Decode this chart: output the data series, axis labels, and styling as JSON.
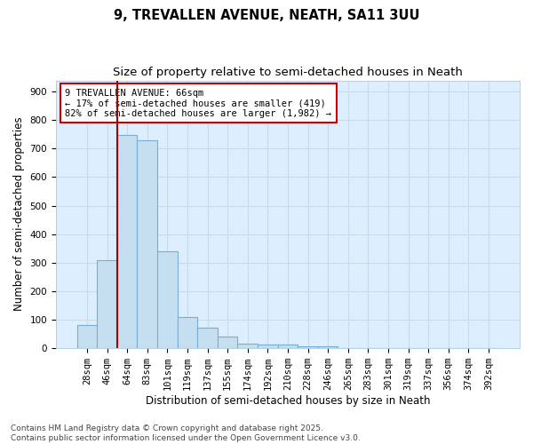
{
  "title_line1": "9, TREVALLEN AVENUE, NEATH, SA11 3UU",
  "title_line2": "Size of property relative to semi-detached houses in Neath",
  "xlabel": "Distribution of semi-detached houses by size in Neath",
  "ylabel": "Number of semi-detached properties",
  "bar_labels": [
    "28sqm",
    "46sqm",
    "64sqm",
    "83sqm",
    "101sqm",
    "119sqm",
    "137sqm",
    "155sqm",
    "174sqm",
    "192sqm",
    "210sqm",
    "228sqm",
    "246sqm",
    "265sqm",
    "283sqm",
    "301sqm",
    "319sqm",
    "337sqm",
    "356sqm",
    "374sqm",
    "392sqm"
  ],
  "bar_values": [
    80,
    307,
    748,
    730,
    340,
    108,
    70,
    40,
    15,
    12,
    12,
    5,
    4,
    0,
    0,
    0,
    0,
    0,
    0,
    0,
    0
  ],
  "bar_color": "#c5dff0",
  "bar_edge_color": "#7badd4",
  "plot_bg_color": "#ddeeff",
  "fig_bg_color": "#ffffff",
  "vline_color": "#aa0000",
  "vline_x_index": 2,
  "annotation_text": "9 TREVALLEN AVENUE: 66sqm\n← 17% of semi-detached houses are smaller (419)\n82% of semi-detached houses are larger (1,982) →",
  "annotation_box_color": "white",
  "annotation_box_edge": "#cc0000",
  "ylim": [
    0,
    940
  ],
  "yticks": [
    0,
    100,
    200,
    300,
    400,
    500,
    600,
    700,
    800,
    900
  ],
  "grid_color": "#c8dce8",
  "footnote": "Contains HM Land Registry data © Crown copyright and database right 2025.\nContains public sector information licensed under the Open Government Licence v3.0.",
  "title_fontsize": 10.5,
  "subtitle_fontsize": 9.5,
  "axis_label_fontsize": 8.5,
  "tick_fontsize": 7.5,
  "annotation_fontsize": 7.5,
  "footnote_fontsize": 6.5
}
